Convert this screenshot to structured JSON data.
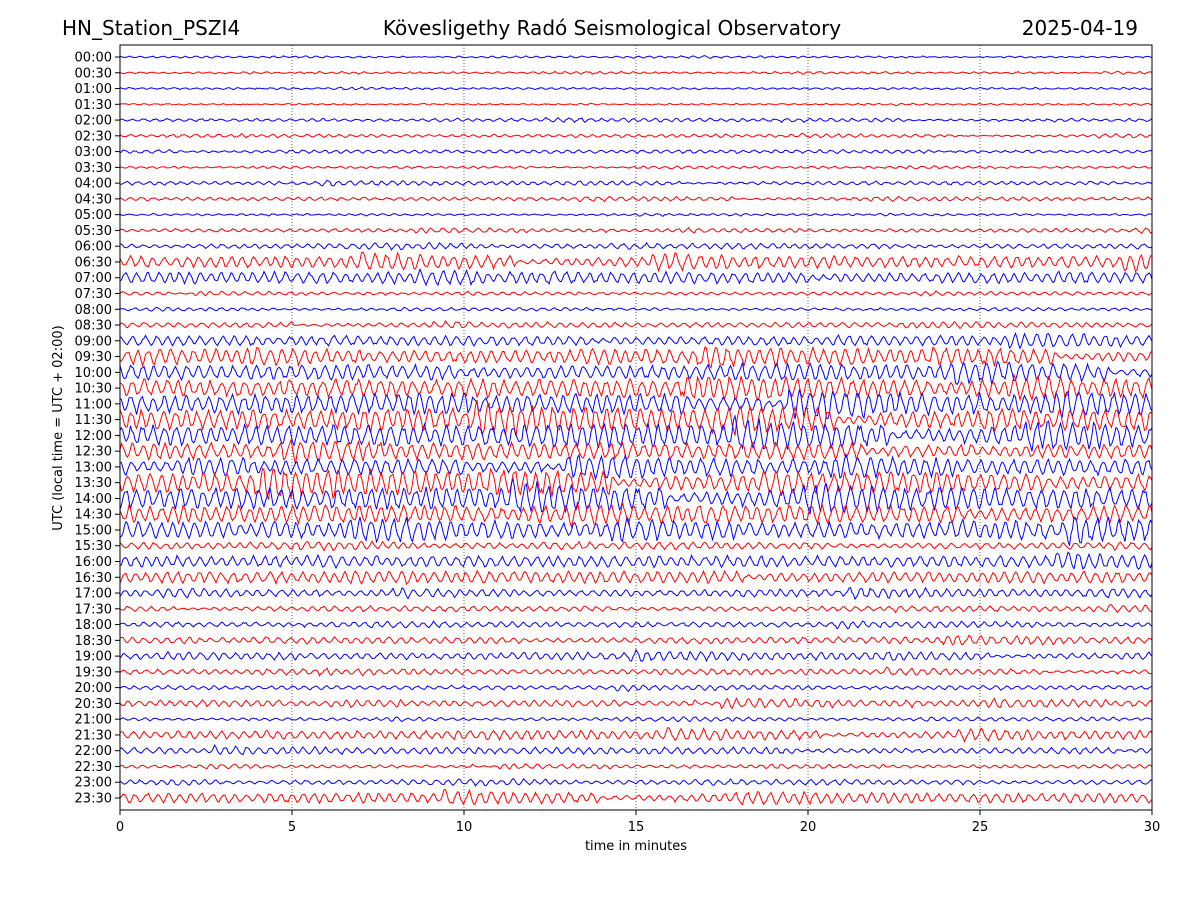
{
  "chart_data": {
    "type": "line",
    "chart_kind": "helicorder seismogram",
    "title_left": "HN_Station_PSZI4",
    "title": "Kövesligethy Radó Seismological Observatory",
    "title_right": "2025-04-19",
    "xlabel": "time in minutes",
    "ylabel": "UTC (local time = UTC + 02:00)",
    "xlim": [
      0,
      30
    ],
    "x_ticks": [
      "0",
      "5",
      "10",
      "15",
      "20",
      "25",
      "30"
    ],
    "x_tick_values": [
      0,
      5,
      10,
      15,
      20,
      25,
      30
    ],
    "grid": "vertical dotted at x ticks",
    "colors": [
      "#0000ff",
      "#ff0000"
    ],
    "rows": [
      "00:00",
      "00:30",
      "01:00",
      "01:30",
      "02:00",
      "02:30",
      "03:00",
      "03:30",
      "04:00",
      "04:30",
      "05:00",
      "05:30",
      "06:00",
      "06:30",
      "07:00",
      "07:30",
      "08:00",
      "08:30",
      "09:00",
      "09:30",
      "10:00",
      "10:30",
      "11:00",
      "11:30",
      "12:00",
      "12:30",
      "13:00",
      "13:30",
      "14:00",
      "14:30",
      "15:00",
      "15:30",
      "16:00",
      "16:30",
      "17:00",
      "17:30",
      "18:00",
      "18:30",
      "19:00",
      "19:30",
      "20:00",
      "20:30",
      "21:00",
      "21:30",
      "22:00",
      "22:30",
      "23:00",
      "23:30"
    ],
    "relative_activity": [
      0.05,
      0.05,
      0.05,
      0.04,
      0.08,
      0.08,
      0.1,
      0.06,
      0.1,
      0.1,
      0.06,
      0.1,
      0.15,
      0.35,
      0.35,
      0.08,
      0.08,
      0.15,
      0.3,
      0.4,
      0.45,
      0.55,
      0.6,
      0.6,
      0.65,
      0.5,
      0.5,
      0.6,
      0.65,
      0.55,
      0.5,
      0.2,
      0.35,
      0.35,
      0.2,
      0.15,
      0.15,
      0.2,
      0.2,
      0.15,
      0.12,
      0.2,
      0.1,
      0.25,
      0.2,
      0.1,
      0.15,
      0.3
    ]
  }
}
